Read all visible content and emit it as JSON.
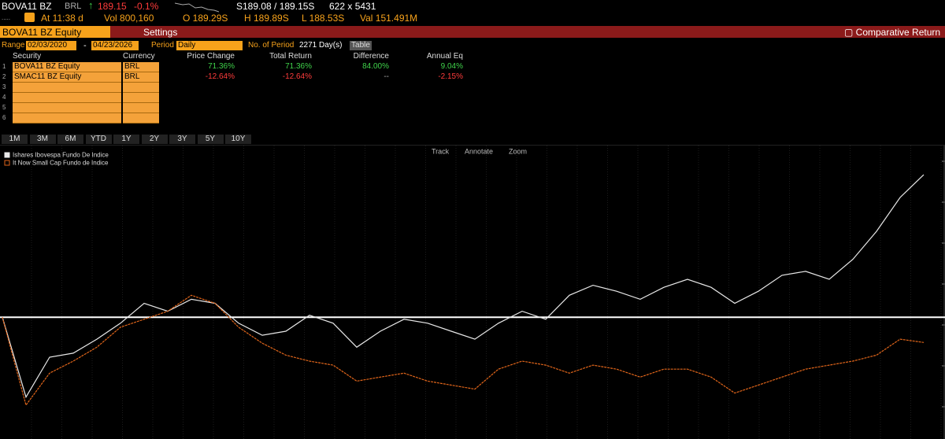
{
  "quote": {
    "symbol": "BOVA11 BZ",
    "currency": "BRL",
    "last": "189.15",
    "change": "-0.1%",
    "bid_ask": "S189.08 / 189.15S",
    "size": "622 x 5431",
    "time": "At 11:38 d",
    "volume": "Vol 800,160",
    "open": "O 189.29S",
    "high": "H 189.89S",
    "low": "L 188.53S",
    "value": "Val 151.491M"
  },
  "header": {
    "security": "BOVA11 BZ Equity",
    "settings": "Settings",
    "function": "Comparative Return"
  },
  "controls": {
    "range_label": "Range",
    "start": "02/03/2020",
    "end": "04/23/2026",
    "period_label": "Period",
    "period": "Daily",
    "periods_label": "No. of Period",
    "periods": "2271 Day(s)",
    "table_button": "Table"
  },
  "table": {
    "columns": [
      "Security",
      "Currency",
      "Price Change",
      "Total Return",
      "Difference",
      "Annual Eq"
    ],
    "row_numbers": [
      "1",
      "2",
      "3",
      "4",
      "5",
      "6"
    ],
    "rows": [
      [
        "BOVA11 BZ Equity",
        "BRL",
        "71.36%",
        "71.36%",
        "84.00%",
        "9.04%"
      ],
      [
        "SMAC11 BZ Equity",
        "BRL",
        "-12.64%",
        "-12.64%",
        "--",
        "-2.15%"
      ]
    ]
  },
  "range_buttons": [
    "1M",
    "3M",
    "6M",
    "YTD",
    "1Y",
    "2Y",
    "3Y",
    "5Y",
    "10Y"
  ],
  "chart_tools": [
    "Track",
    "Annotate",
    "Zoom"
  ],
  "chart_data": {
    "type": "line",
    "ylim": [
      -61,
      86
    ],
    "series": [
      {
        "name": "Ishares Ibovespa Fundo De Indice",
        "color": "#e8e8e8",
        "values": [
          0,
          -40,
          -20,
          -18,
          -11,
          -3,
          7,
          3,
          9,
          7,
          -3,
          -9,
          -7,
          1,
          -3,
          -15,
          -7,
          -1,
          -3,
          -7,
          -11,
          -3,
          3,
          -1,
          11,
          16,
          13,
          9,
          15,
          19,
          15,
          7,
          13,
          21,
          23,
          19,
          29,
          43,
          60,
          71.36
        ]
      },
      {
        "name": "It Now Small Cap Fundo de Indice",
        "color": "#e0651a",
        "values": [
          0,
          -44,
          -28,
          -22,
          -15,
          -5,
          -1,
          3,
          11,
          7,
          -5,
          -13,
          -19,
          -22,
          -24,
          -32,
          -30,
          -28,
          -32,
          -34,
          -36,
          -26,
          -22,
          -24,
          -28,
          -24,
          -26,
          -30,
          -26,
          -26,
          -30,
          -38,
          -34,
          -30,
          -26,
          -24,
          -22,
          -19,
          -11,
          -12.64
        ]
      }
    ]
  }
}
